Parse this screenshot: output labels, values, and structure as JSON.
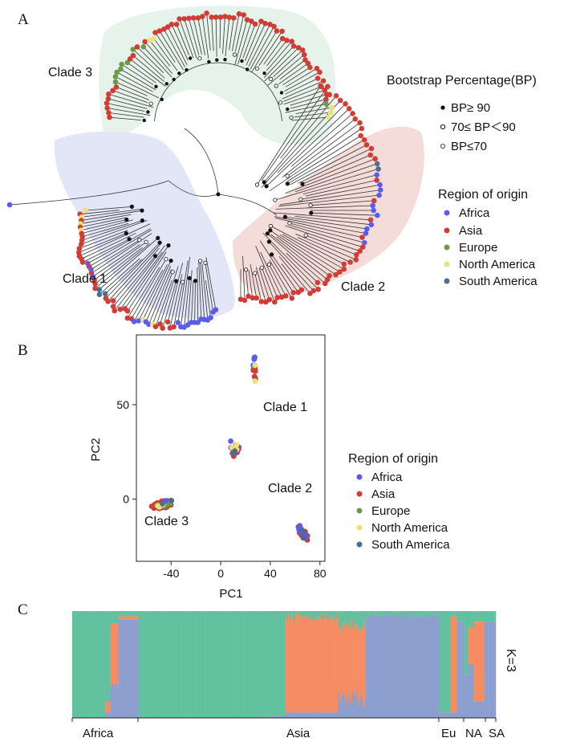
{
  "panels": {
    "a": "A",
    "b": "B",
    "c": "C"
  },
  "colors": {
    "Africa": "#5a5cf0",
    "Asia": "#d13d36",
    "Europe": "#6a9a4a",
    "North America": "#eee17a",
    "South America": "#4a6e8e",
    "k1": "#62c19e",
    "k2": "#f58c62",
    "k3": "#8d9fce"
  },
  "tree": {
    "clades": [
      "Clade 3",
      "Clade 1",
      "Clade 2"
    ],
    "bootstrap_title": "Bootstrap Percentage(BP)",
    "bootstrap_items": [
      "BP≥ 90",
      "70≤ BP＜90",
      "BP≤70"
    ],
    "region_title": "Region of origin",
    "regions": [
      "Africa",
      "Asia",
      "Europe",
      "North America",
      "South America"
    ]
  },
  "pca": {
    "xlabel": "PC1",
    "ylabel": "PC2",
    "xticks": [
      "-40",
      "0",
      "40",
      "80"
    ],
    "yticks": [
      "0",
      "50"
    ],
    "clade_labels": [
      "Clade 1",
      "Clade 2",
      "Clade 3"
    ],
    "region_title": "Region of origin",
    "regions": [
      "Africa",
      "Asia",
      "Europe",
      "North America",
      "South America"
    ]
  },
  "chart_data": {
    "type": "scatter",
    "xlabel": "PC1",
    "ylabel": "PC2",
    "xlim": [
      -68,
      84
    ],
    "ylim": [
      -33,
      87
    ],
    "clusters": [
      {
        "name": "Clade 3",
        "region_counts": {
          "Asia": 48,
          "Europe": 7,
          "North America": 3,
          "South America": 2,
          "Africa": 1
        },
        "center": [
          -47,
          -3
        ],
        "spread": [
          12,
          4
        ]
      },
      {
        "name": "Clade 1 upper",
        "region_counts": {
          "Africa": 10,
          "Asia": 5,
          "North America": 2
        },
        "center": [
          27,
          70
        ],
        "spread": [
          2.5,
          12
        ]
      },
      {
        "name": "Clade 1 lower",
        "region_counts": {
          "Africa": 10,
          "Asia": 12,
          "North America": 4,
          "South America": 2
        },
        "center": [
          12,
          26
        ],
        "spread": [
          6,
          6
        ]
      },
      {
        "name": "Clade 2",
        "region_counts": {
          "Asia": 40,
          "Africa": 14,
          "South America": 2
        },
        "center": [
          66,
          -18
        ],
        "spread": [
          8,
          6
        ]
      }
    ]
  },
  "structure": {
    "k_label": "K=3",
    "groups": [
      "Africa",
      "Asia",
      "Eu",
      "NA",
      "SA"
    ]
  }
}
